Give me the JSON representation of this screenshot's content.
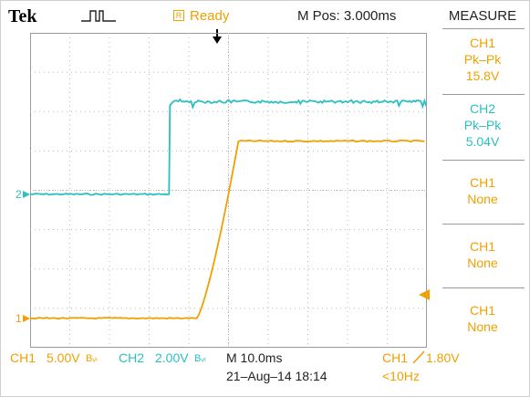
{
  "header": {
    "brand": "Tek",
    "acquire_icon": "pulse-waveform-icon",
    "status_icon_letter": "R",
    "status": "Ready",
    "m_pos": "M Pos: 3.000ms"
  },
  "measure": {
    "title": "MEASURE",
    "panels": [
      {
        "source": "CH1",
        "type": "Pk–Pk",
        "value": "15.8V",
        "color": "#f0a000"
      },
      {
        "source": "CH2",
        "type": "Pk–Pk",
        "value": "5.04V",
        "color": "#2bbfc0"
      },
      {
        "source": "CH1",
        "type": "None",
        "value": "",
        "color": "#f0a000"
      },
      {
        "source": "CH1",
        "type": "None",
        "value": "",
        "color": "#f0a000"
      },
      {
        "source": "CH1",
        "type": "None",
        "value": "",
        "color": "#f0a000"
      }
    ]
  },
  "channels": {
    "ch1": {
      "marker": "1",
      "label": "CH1",
      "scale": "5.00V",
      "bw": "Bᵥₗ",
      "color": "#f0a000"
    },
    "ch2": {
      "marker": "2",
      "label": "CH2",
      "scale": "2.00V",
      "bw": "Bᵥₗ",
      "color": "#2bbfc0"
    }
  },
  "footer": {
    "timebase": "M 10.0ms",
    "datetime": "21–Aug–14 18:14",
    "trigger_source": "CH1",
    "trigger_slope_icon": "rising-edge-icon",
    "trigger_level": "1.80V",
    "trigger_freq": "<10Hz"
  },
  "grid": {
    "divisions_x": 10,
    "divisions_y": 8,
    "color": "#b8b8b8"
  },
  "waveforms": {
    "ch2": {
      "low_div": 3.9,
      "high_div": 6.25,
      "edge_div": 3.5,
      "color": "#2bbfc0"
    },
    "ch1": {
      "low_div": 0.75,
      "high_div": 5.25,
      "rise_start_div": 4.2,
      "rise_end_div": 5.25,
      "color": "#f0a000"
    }
  }
}
